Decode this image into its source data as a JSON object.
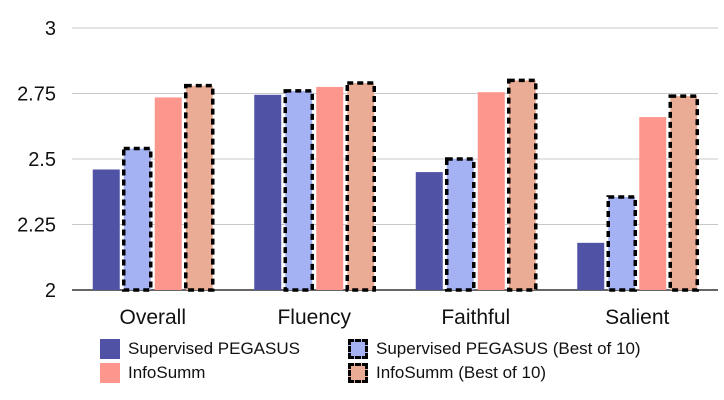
{
  "chart_data": {
    "type": "bar",
    "categories": [
      "Overall",
      "Fluency",
      "Faithful",
      "Salient"
    ],
    "ylim": [
      2,
      3
    ],
    "yticks": [
      "2",
      "2.25",
      "2.5",
      "2.75",
      "3"
    ],
    "grid": true,
    "legend_position": "bottom",
    "series": [
      {
        "name": "Supervised PEGASUS",
        "values": [
          2.46,
          2.745,
          2.45,
          2.18
        ],
        "color": "#5052a5",
        "dashed": false
      },
      {
        "name": "Supervised PEGASUS (Best of 10)",
        "values": [
          2.54,
          2.76,
          2.5,
          2.355
        ],
        "color": "#a4b2f4",
        "dashed": true
      },
      {
        "name": "InfoSumm",
        "values": [
          2.735,
          2.775,
          2.755,
          2.66
        ],
        "color": "#fd968d",
        "dashed": false
      },
      {
        "name": "InfoSumm (Best of 10)",
        "values": [
          2.78,
          2.79,
          2.8,
          2.74
        ],
        "color": "#eaac94",
        "dashed": true
      }
    ]
  }
}
